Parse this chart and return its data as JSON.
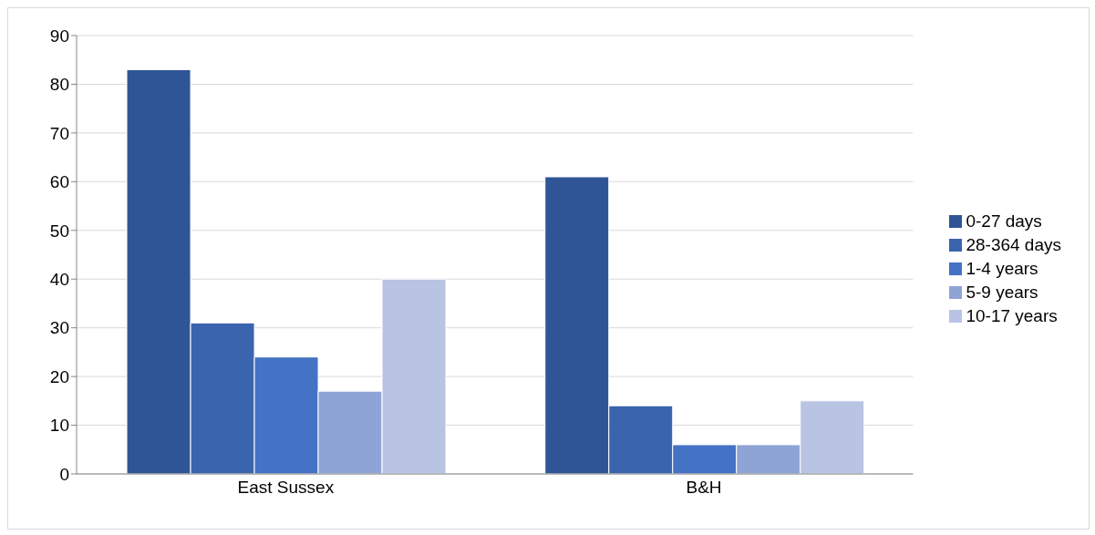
{
  "chart_data": {
    "type": "bar",
    "categories": [
      "East Sussex",
      "B&H"
    ],
    "series": [
      {
        "name": "0-27 days",
        "color": "#2f5597",
        "values": [
          83,
          61
        ]
      },
      {
        "name": "28-364 days",
        "color": "#3a64ae",
        "values": [
          31,
          14
        ]
      },
      {
        "name": "1-4 years",
        "color": "#4472c4",
        "values": [
          24,
          6
        ]
      },
      {
        "name": "5-9 years",
        "color": "#8fa4d6",
        "values": [
          17,
          6
        ]
      },
      {
        "name": "10-17 years",
        "color": "#b9c3e3",
        "values": [
          40,
          15
        ]
      }
    ],
    "ylim": [
      0,
      90
    ],
    "yticks": [
      0,
      10,
      20,
      30,
      40,
      50,
      60,
      70,
      80,
      90
    ],
    "grid": "y",
    "legend": "right"
  }
}
